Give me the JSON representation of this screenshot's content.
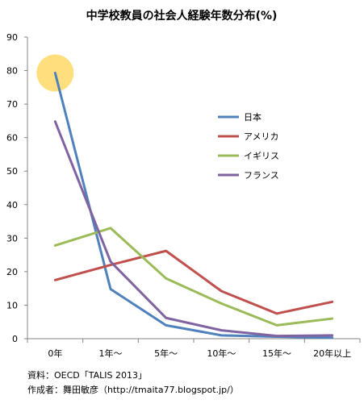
{
  "chart_data": {
    "type": "line",
    "title": "中学校教員の社会人経験年数分布(%)",
    "categories": [
      "0年",
      "1年〜",
      "5年〜",
      "10年〜",
      "15年〜",
      "20年以上"
    ],
    "ylim": [
      0,
      90
    ],
    "yticks": [
      0,
      10,
      20,
      30,
      40,
      50,
      60,
      70,
      80,
      90
    ],
    "grid": false,
    "legend_position": "right",
    "series": [
      {
        "name": "日本",
        "color": "#4f81bd",
        "values": [
          79.3,
          14.8,
          4.0,
          1.0,
          0.6,
          0.3
        ]
      },
      {
        "name": "アメリカ",
        "color": "#c0504d",
        "values": [
          17.5,
          22.0,
          26.2,
          14.2,
          7.5,
          11.0
        ]
      },
      {
        "name": "イギリス",
        "color": "#9bbb59",
        "values": [
          27.8,
          33.0,
          18.0,
          10.5,
          4.0,
          6.0
        ]
      },
      {
        "name": "フランス",
        "color": "#8064a2",
        "values": [
          64.8,
          23.0,
          6.2,
          2.5,
          0.8,
          1.0
        ]
      }
    ],
    "highlight": {
      "category_index": 0,
      "value": 79.3,
      "color": "#ffd966"
    }
  },
  "footer": {
    "source": "資料：OECD「TALIS 2013」",
    "author": "作成者：舞田敏彦（http://tmaita77.blogspot.jp/）"
  }
}
